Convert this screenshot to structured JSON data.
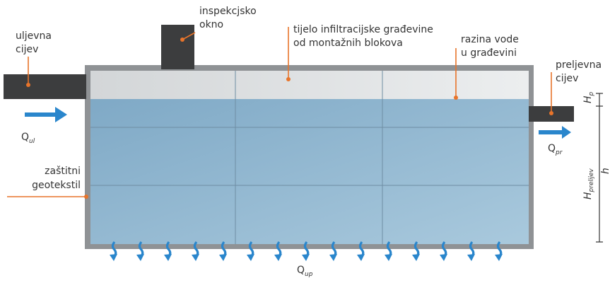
{
  "labels": [
    {
      "lines": [
        "uljevna",
        "cijev"
      ]
    },
    {
      "lines": [
        "inspekcjsko",
        "okno"
      ]
    },
    {
      "lines": [
        "tijelo infiltracijske građevine",
        "od montažnih blokova"
      ]
    },
    {
      "lines": [
        "razina vode",
        "u građevini"
      ]
    },
    {
      "lines": [
        "preljevna",
        "cijev"
      ]
    },
    {
      "lines": [
        "zaštitni",
        "geotekstil"
      ]
    }
  ],
  "flows": [
    {
      "symbol": "Q",
      "subscript": "ul"
    },
    {
      "symbol": "Q",
      "subscript": "pr"
    },
    {
      "symbol": "Q",
      "subscript": "up"
    }
  ],
  "dimensions": [
    {
      "symbol": "H",
      "subscript": "p"
    },
    {
      "symbol": "H",
      "subscript": "prelijev"
    },
    {
      "symbol": "h"
    }
  ]
}
